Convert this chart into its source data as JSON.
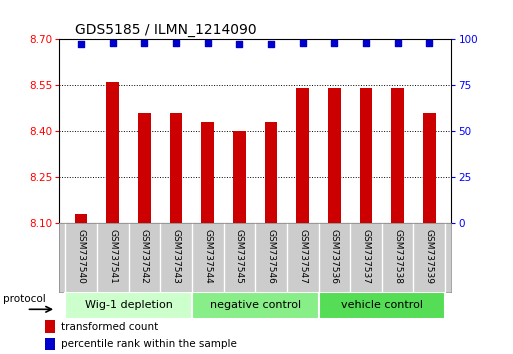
{
  "title": "GDS5185 / ILMN_1214090",
  "samples": [
    "GSM737540",
    "GSM737541",
    "GSM737542",
    "GSM737543",
    "GSM737544",
    "GSM737545",
    "GSM737546",
    "GSM737547",
    "GSM737536",
    "GSM737537",
    "GSM737538",
    "GSM737539"
  ],
  "bar_values": [
    8.13,
    8.56,
    8.46,
    8.46,
    8.43,
    8.4,
    8.43,
    8.54,
    8.54,
    8.54,
    8.54,
    8.46
  ],
  "percentile_values": [
    97,
    98,
    98,
    98,
    98,
    97,
    97,
    98,
    98,
    98,
    98,
    98
  ],
  "bar_color": "#cc0000",
  "percentile_color": "#0000cc",
  "ylim_left": [
    8.1,
    8.7
  ],
  "ylim_right": [
    0,
    100
  ],
  "yticks_left": [
    8.1,
    8.25,
    8.4,
    8.55,
    8.7
  ],
  "yticks_right": [
    0,
    25,
    50,
    75,
    100
  ],
  "groups": [
    {
      "label": "Wig-1 depletion",
      "start": 0,
      "end": 4,
      "color": "#ccffcc"
    },
    {
      "label": "negative control",
      "start": 4,
      "end": 8,
      "color": "#88ee88"
    },
    {
      "label": "vehicle control",
      "start": 8,
      "end": 12,
      "color": "#55dd55"
    }
  ],
  "legend_red_label": "transformed count",
  "legend_blue_label": "percentile rank within the sample",
  "protocol_label": "protocol",
  "background_color": "#ffffff",
  "bar_bottom": 8.1,
  "label_bg": "#cccccc",
  "bar_width": 0.4
}
